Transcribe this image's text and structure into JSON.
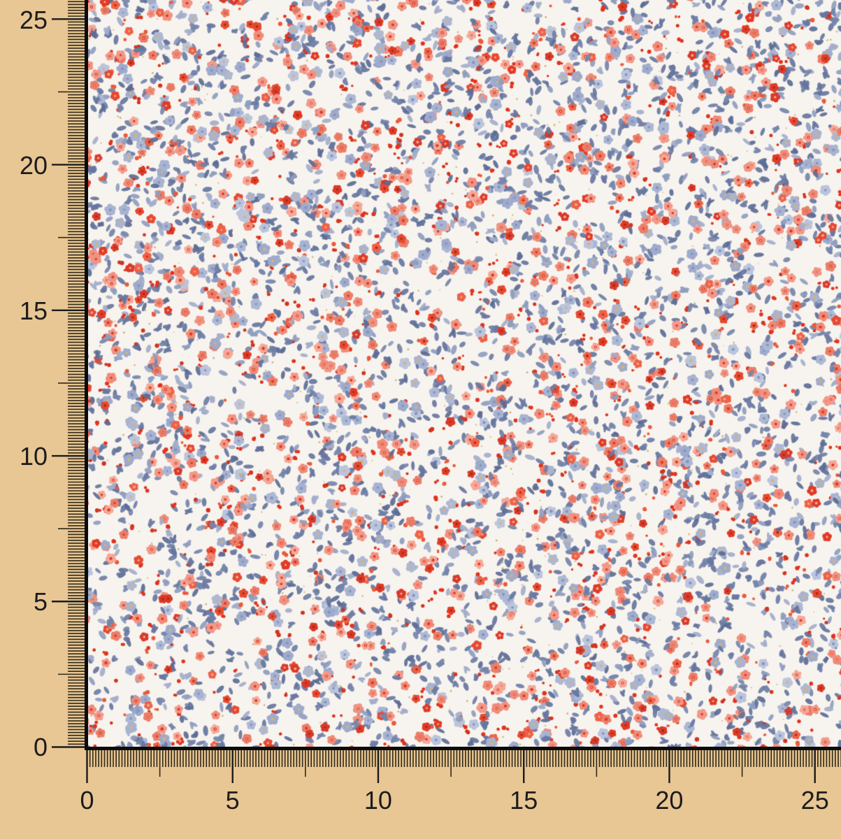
{
  "board": {
    "background_color": "#e9c795"
  },
  "ruler": {
    "left_labels": [
      "0",
      "5",
      "10",
      "15",
      "20",
      "25"
    ],
    "bottom_labels": [
      "0",
      "5",
      "10",
      "15",
      "20",
      "25"
    ],
    "label_step": 5,
    "range": [
      0,
      25
    ],
    "minor_tick_color": "#322816",
    "major_tick_color": "#1b1b1b",
    "label_color": "#1c1c1c"
  },
  "fabric": {
    "name": "ditsy-floral-fabric-swatch",
    "ground_color": "#f7f3ee",
    "edge_line_color": "#0c0c0c",
    "pattern": {
      "leaf_colors": [
        "#67769f",
        "#67769f",
        "#6e7ea6",
        "#7584aa",
        "#8e9dbf",
        "#a3aecb",
        "#5c6c96"
      ],
      "coral_petal_colors": [
        "#f2998a",
        "#ef8b78",
        "#f4a897",
        "#ea7e69",
        "#f09382"
      ],
      "red_petal_colors": [
        "#e64a31",
        "#e13b26",
        "#ee6248",
        "#d93a2a"
      ],
      "lavender_petal_colors": [
        "#adb8d5",
        "#9fabcc",
        "#bac4dd",
        "#a8b3d2"
      ],
      "bud_colors": [
        "#e0341f",
        "#e0341f",
        "#ea5a3a",
        "#d13520"
      ],
      "coral_center_color": "#dc3a24",
      "coral_inner_color": "#f8d3c4",
      "red_center_dark": "#a92a18",
      "red_center_light": "#f2a795",
      "lavender_center_color": "#8593b8",
      "lavender_center_accent": "#d9b469",
      "speck_color": "#c9a763",
      "counts": {
        "leaves": 3300,
        "coral_flowers": 760,
        "red_flowers": 380,
        "lavender_flowers": 520,
        "buds": 950,
        "specks": 550
      }
    }
  }
}
